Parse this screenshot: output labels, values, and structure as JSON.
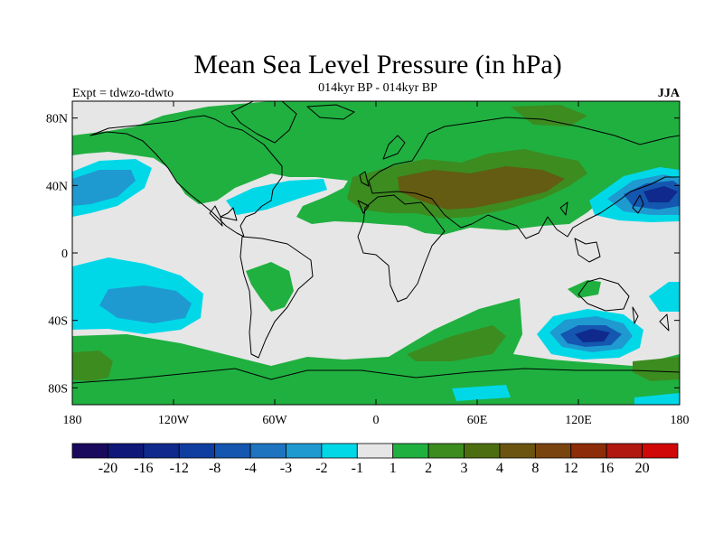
{
  "title": "Mean Sea Level Pressure (in hPa)",
  "left_label": "Expt = tdwzo-tdwto",
  "center_label": "014kyr BP - 014kyr BP",
  "right_label": "JJA",
  "lon_ticks": [
    "180",
    "120W",
    "60W",
    "0",
    "60E",
    "120E",
    "180"
  ],
  "lat_ticks": [
    "80N",
    "40N",
    "0",
    "40S",
    "80S"
  ],
  "colorbar": {
    "colors": [
      "#1a0a5e",
      "#0f1878",
      "#0f2a8c",
      "#103ea0",
      "#1456b0",
      "#1f74c0",
      "#1e9ad0",
      "#00d8e8",
      "#e6e6e6",
      "#20b040",
      "#3c8c20",
      "#4c6e10",
      "#6a5410",
      "#7a4410",
      "#8c2c08",
      "#b01810",
      "#d00808"
    ],
    "labels": [
      "-20",
      "-16",
      "-12",
      "-8",
      "-4",
      "-3",
      "-2",
      "-1",
      "1",
      "2",
      "3",
      "4",
      "8",
      "12",
      "16",
      "20"
    ]
  }
}
